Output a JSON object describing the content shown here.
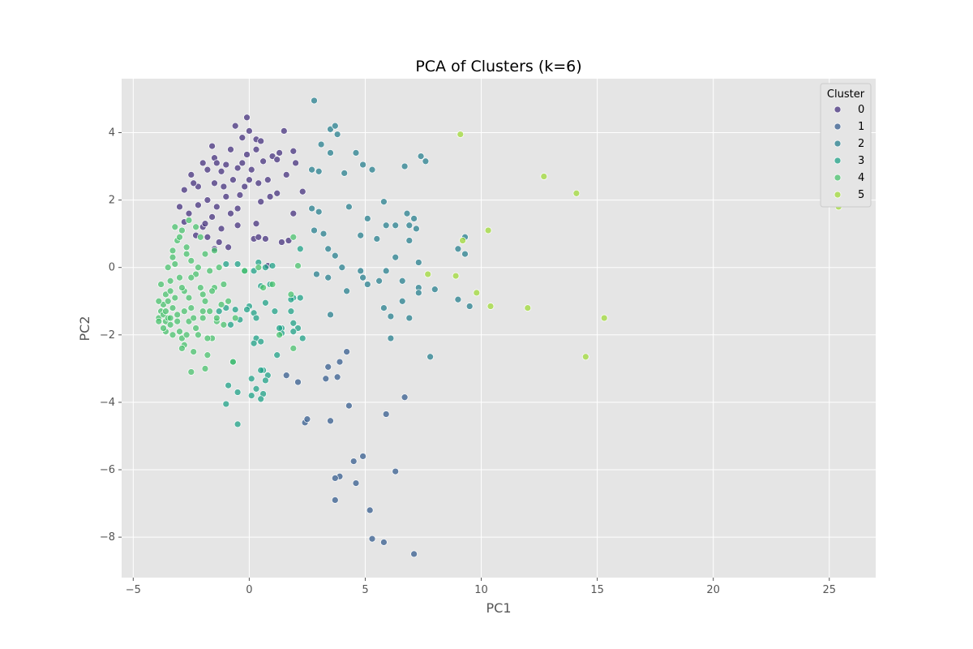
{
  "chart_data": {
    "type": "scatter",
    "title": "PCA of Clusters (k=6)",
    "xlabel": "PC1",
    "ylabel": "PC2",
    "xlim": [
      -5.5,
      27
    ],
    "ylim": [
      -9.2,
      5.6
    ],
    "xticks": [
      -5,
      0,
      5,
      10,
      15,
      20,
      25
    ],
    "yticks": [
      -8,
      -6,
      -4,
      -2,
      0,
      2,
      4
    ],
    "grid": true,
    "legend": {
      "title": "Cluster",
      "placement": "top-right"
    },
    "series": [
      {
        "name": "0",
        "color": "#46327e",
        "points": [
          [
            -0.1,
            4.45
          ],
          [
            -0.6,
            4.2
          ],
          [
            0.0,
            4.05
          ],
          [
            1.5,
            4.05
          ],
          [
            -0.3,
            3.85
          ],
          [
            0.3,
            3.8
          ],
          [
            0.5,
            3.75
          ],
          [
            -1.6,
            3.6
          ],
          [
            -0.8,
            3.5
          ],
          [
            0.3,
            3.5
          ],
          [
            -0.1,
            3.35
          ],
          [
            1.0,
            3.3
          ],
          [
            -1.5,
            3.25
          ],
          [
            0.6,
            3.15
          ],
          [
            -2.0,
            3.1
          ],
          [
            -1.0,
            3.05
          ],
          [
            1.2,
            3.2
          ],
          [
            2.0,
            3.1
          ],
          [
            -0.5,
            2.95
          ],
          [
            -1.8,
            2.9
          ],
          [
            -1.2,
            2.85
          ],
          [
            0.1,
            2.9
          ],
          [
            1.6,
            2.75
          ],
          [
            -2.5,
            2.75
          ],
          [
            -0.7,
            2.6
          ],
          [
            0.4,
            2.5
          ],
          [
            -1.5,
            2.5
          ],
          [
            -2.2,
            2.4
          ],
          [
            1.2,
            2.2
          ],
          [
            2.3,
            2.25
          ],
          [
            -2.8,
            2.3
          ],
          [
            -0.4,
            2.15
          ],
          [
            -1.0,
            2.1
          ],
          [
            0.9,
            2.1
          ],
          [
            -1.8,
            2.0
          ],
          [
            0.5,
            1.95
          ],
          [
            -2.2,
            1.85
          ],
          [
            -1.4,
            1.8
          ],
          [
            -0.5,
            1.75
          ],
          [
            -3.0,
            1.8
          ],
          [
            1.9,
            1.6
          ],
          [
            -2.6,
            1.6
          ],
          [
            -1.6,
            1.5
          ],
          [
            -0.8,
            1.6
          ],
          [
            0.3,
            1.3
          ],
          [
            -2.0,
            1.2
          ],
          [
            -1.2,
            1.15
          ],
          [
            -2.8,
            1.35
          ],
          [
            -0.5,
            1.25
          ],
          [
            -2.3,
            0.95
          ],
          [
            -1.8,
            0.9
          ],
          [
            0.2,
            0.85
          ],
          [
            0.7,
            0.85
          ],
          [
            1.4,
            0.75
          ],
          [
            1.7,
            0.8
          ],
          [
            -1.3,
            0.75
          ],
          [
            -0.9,
            0.6
          ],
          [
            -1.5,
            0.55
          ],
          [
            0.8,
            0.05
          ],
          [
            0.4,
            0.9
          ],
          [
            1.3,
            3.4
          ],
          [
            -1.1,
            2.4
          ],
          [
            0.8,
            2.6
          ],
          [
            -0.2,
            2.4
          ],
          [
            -2.4,
            2.5
          ],
          [
            -1.9,
            1.3
          ],
          [
            -0.3,
            3.1
          ],
          [
            1.9,
            3.45
          ],
          [
            0.0,
            2.6
          ],
          [
            -1.4,
            3.1
          ]
        ]
      },
      {
        "name": "1",
        "color": "#365c8d",
        "points": [
          [
            3.4,
            -2.95
          ],
          [
            2.1,
            -3.4
          ],
          [
            3.3,
            -3.3
          ],
          [
            1.6,
            -3.2
          ],
          [
            3.8,
            -3.25
          ],
          [
            3.9,
            -2.8
          ],
          [
            4.2,
            -2.5
          ],
          [
            4.3,
            -4.1
          ],
          [
            2.4,
            -4.6
          ],
          [
            3.5,
            -4.55
          ],
          [
            2.5,
            -4.5
          ],
          [
            5.9,
            -4.35
          ],
          [
            6.7,
            -3.85
          ],
          [
            4.9,
            -5.6
          ],
          [
            4.5,
            -5.75
          ],
          [
            6.3,
            -6.05
          ],
          [
            3.9,
            -6.2
          ],
          [
            3.7,
            -6.25
          ],
          [
            4.6,
            -6.4
          ],
          [
            3.7,
            -6.9
          ],
          [
            5.2,
            -7.2
          ],
          [
            5.3,
            -8.05
          ],
          [
            5.8,
            -8.15
          ],
          [
            7.1,
            -8.5
          ]
        ]
      },
      {
        "name": "2",
        "color": "#277f8e",
        "points": [
          [
            2.8,
            4.95
          ],
          [
            3.5,
            4.1
          ],
          [
            3.7,
            4.2
          ],
          [
            3.8,
            3.95
          ],
          [
            3.1,
            3.65
          ],
          [
            3.5,
            3.4
          ],
          [
            4.6,
            3.4
          ],
          [
            7.4,
            3.3
          ],
          [
            7.6,
            3.15
          ],
          [
            4.9,
            3.05
          ],
          [
            5.3,
            2.9
          ],
          [
            6.7,
            3.0
          ],
          [
            2.7,
            2.9
          ],
          [
            3.0,
            2.85
          ],
          [
            4.1,
            2.8
          ],
          [
            5.8,
            1.95
          ],
          [
            4.3,
            1.8
          ],
          [
            2.7,
            1.75
          ],
          [
            3.0,
            1.65
          ],
          [
            5.1,
            1.45
          ],
          [
            6.8,
            1.6
          ],
          [
            7.1,
            1.45
          ],
          [
            5.9,
            1.25
          ],
          [
            6.3,
            1.25
          ],
          [
            6.9,
            1.25
          ],
          [
            7.2,
            1.15
          ],
          [
            2.8,
            1.1
          ],
          [
            3.2,
            1.0
          ],
          [
            4.8,
            0.95
          ],
          [
            5.5,
            0.85
          ],
          [
            6.9,
            0.8
          ],
          [
            9.3,
            0.9
          ],
          [
            9.0,
            0.55
          ],
          [
            9.3,
            0.4
          ],
          [
            3.4,
            0.55
          ],
          [
            3.7,
            0.35
          ],
          [
            6.3,
            0.3
          ],
          [
            7.3,
            0.15
          ],
          [
            4.0,
            0.0
          ],
          [
            4.8,
            -0.1
          ],
          [
            5.9,
            -0.1
          ],
          [
            2.9,
            -0.2
          ],
          [
            3.4,
            -0.3
          ],
          [
            4.9,
            -0.3
          ],
          [
            5.1,
            -0.5
          ],
          [
            5.6,
            -0.4
          ],
          [
            6.6,
            -0.4
          ],
          [
            7.3,
            -0.6
          ],
          [
            7.3,
            -0.75
          ],
          [
            8.0,
            -0.65
          ],
          [
            6.6,
            -1.0
          ],
          [
            9.0,
            -0.95
          ],
          [
            9.5,
            -1.15
          ],
          [
            5.8,
            -1.2
          ],
          [
            6.1,
            -1.45
          ],
          [
            3.5,
            -1.4
          ],
          [
            6.9,
            -1.5
          ],
          [
            6.1,
            -2.1
          ],
          [
            7.8,
            -2.65
          ],
          [
            4.2,
            -0.7
          ]
        ]
      },
      {
        "name": "3",
        "color": "#1fa187",
        "points": [
          [
            -1.0,
            0.1
          ],
          [
            -0.5,
            0.1
          ],
          [
            0.4,
            0.15
          ],
          [
            0.7,
            0.0
          ],
          [
            1.0,
            0.05
          ],
          [
            0.2,
            -0.1
          ],
          [
            -0.2,
            -0.1
          ],
          [
            0.5,
            -0.55
          ],
          [
            0.9,
            -0.5
          ],
          [
            1.9,
            -0.9
          ],
          [
            2.2,
            -0.9
          ],
          [
            0.7,
            -1.05
          ],
          [
            0.0,
            -1.15
          ],
          [
            -0.1,
            -1.25
          ],
          [
            -0.6,
            -1.25
          ],
          [
            -1.0,
            -1.2
          ],
          [
            -1.3,
            -1.3
          ],
          [
            0.2,
            -1.35
          ],
          [
            1.1,
            -1.3
          ],
          [
            1.8,
            -1.3
          ],
          [
            1.9,
            -1.65
          ],
          [
            1.4,
            -1.8
          ],
          [
            2.1,
            -1.8
          ],
          [
            1.9,
            -1.9
          ],
          [
            1.4,
            -1.95
          ],
          [
            2.3,
            -2.1
          ],
          [
            0.3,
            -2.1
          ],
          [
            0.5,
            -2.2
          ],
          [
            0.2,
            -2.25
          ],
          [
            1.2,
            -2.6
          ],
          [
            -0.7,
            -2.8
          ],
          [
            0.6,
            -3.05
          ],
          [
            0.8,
            -3.2
          ],
          [
            0.7,
            -3.35
          ],
          [
            0.1,
            -3.3
          ],
          [
            -0.9,
            -3.5
          ],
          [
            -0.5,
            -3.7
          ],
          [
            0.3,
            -3.6
          ],
          [
            0.6,
            -3.75
          ],
          [
            0.5,
            -3.9
          ],
          [
            0.1,
            -3.8
          ],
          [
            -1.0,
            -4.05
          ],
          [
            -0.5,
            -4.65
          ],
          [
            -0.4,
            -1.55
          ],
          [
            0.3,
            -1.5
          ],
          [
            -0.8,
            -1.7
          ],
          [
            1.3,
            -1.8
          ],
          [
            1.8,
            -0.95
          ],
          [
            0.5,
            -3.05
          ],
          [
            2.2,
            0.55
          ]
        ]
      },
      {
        "name": "4",
        "color": "#4ac16d",
        "points": [
          [
            -3.9,
            -1.5
          ],
          [
            -3.8,
            -1.3
          ],
          [
            -3.7,
            -1.4
          ],
          [
            -3.6,
            -1.6
          ],
          [
            -3.7,
            -1.1
          ],
          [
            -3.5,
            -1.5
          ],
          [
            -3.4,
            -1.7
          ],
          [
            -3.3,
            -1.2
          ],
          [
            -3.6,
            -0.8
          ],
          [
            -3.4,
            -0.4
          ],
          [
            -3.2,
            -0.9
          ],
          [
            -3.1,
            -1.4
          ],
          [
            -3.0,
            -1.9
          ],
          [
            -2.9,
            -2.1
          ],
          [
            -2.8,
            -2.3
          ],
          [
            -2.7,
            -2.0
          ],
          [
            -2.6,
            -1.6
          ],
          [
            -2.5,
            -1.2
          ],
          [
            -2.8,
            -0.7
          ],
          [
            -3.0,
            -0.3
          ],
          [
            -3.2,
            0.1
          ],
          [
            -3.3,
            0.5
          ],
          [
            -3.1,
            0.8
          ],
          [
            -2.9,
            1.1
          ],
          [
            -2.7,
            0.6
          ],
          [
            -2.5,
            0.2
          ],
          [
            -2.3,
            -0.2
          ],
          [
            -2.1,
            -0.6
          ],
          [
            -1.9,
            -1.0
          ],
          [
            -2.0,
            -1.5
          ],
          [
            -2.2,
            -2.0
          ],
          [
            -2.4,
            -2.5
          ],
          [
            -2.5,
            -3.1
          ],
          [
            -1.9,
            -3.0
          ],
          [
            -1.8,
            -2.6
          ],
          [
            -1.6,
            -2.1
          ],
          [
            -1.4,
            -1.6
          ],
          [
            -1.2,
            -1.1
          ],
          [
            -1.5,
            -0.6
          ],
          [
            -1.7,
            -0.1
          ],
          [
            -1.9,
            0.4
          ],
          [
            -2.1,
            0.9
          ],
          [
            -2.3,
            1.2
          ],
          [
            -2.6,
            1.4
          ],
          [
            -1.5,
            0.5
          ],
          [
            -1.3,
            0.0
          ],
          [
            -1.1,
            -0.5
          ],
          [
            -0.9,
            -1.0
          ],
          [
            -3.8,
            -0.5
          ],
          [
            -3.5,
            0.0
          ],
          [
            -3.3,
            -2.0
          ],
          [
            -3.6,
            -1.9
          ],
          [
            -2.9,
            -0.6
          ],
          [
            -2.6,
            -0.9
          ],
          [
            -2.4,
            -1.5
          ],
          [
            -2.7,
            0.4
          ],
          [
            -3.0,
            0.9
          ],
          [
            -3.2,
            1.2
          ],
          [
            -1.7,
            -1.3
          ],
          [
            -1.4,
            -1.5
          ],
          [
            -0.2,
            -0.1
          ],
          [
            0.4,
            0.0
          ],
          [
            1.0,
            -0.5
          ],
          [
            -3.4,
            -0.7
          ],
          [
            -3.9,
            -1.0
          ],
          [
            -3.5,
            -1.0
          ],
          [
            -2.8,
            -1.3
          ],
          [
            -3.1,
            -1.6
          ],
          [
            -2.2,
            0.0
          ],
          [
            -2.0,
            -0.8
          ],
          [
            -1.8,
            -2.1
          ],
          [
            -2.5,
            -0.3
          ],
          [
            -3.7,
            -1.8
          ],
          [
            -3.3,
            0.3
          ],
          [
            -2.9,
            -2.4
          ],
          [
            -1.6,
            -0.7
          ],
          [
            -1.1,
            -1.7
          ],
          [
            -0.6,
            -1.5
          ],
          [
            0.6,
            -0.6
          ],
          [
            1.3,
            -2.0
          ],
          [
            1.8,
            -0.8
          ],
          [
            1.9,
            0.9
          ],
          [
            2.1,
            0.05
          ],
          [
            -3.9,
            -1.6
          ],
          [
            -3.6,
            -1.3
          ],
          [
            -3.4,
            -1.5
          ],
          [
            -2.3,
            -1.8
          ],
          [
            -2.0,
            -1.3
          ],
          [
            -0.7,
            -2.8
          ],
          [
            1.9,
            -2.4
          ]
        ]
      },
      {
        "name": "5",
        "color": "#a0da39",
        "points": [
          [
            9.1,
            3.95
          ],
          [
            12.7,
            2.7
          ],
          [
            14.1,
            2.2
          ],
          [
            10.3,
            1.1
          ],
          [
            9.2,
            0.8
          ],
          [
            25.4,
            1.8
          ],
          [
            7.7,
            -0.2
          ],
          [
            8.9,
            -0.25
          ],
          [
            9.8,
            -0.75
          ],
          [
            10.4,
            -1.15
          ],
          [
            12.0,
            -1.2
          ],
          [
            15.3,
            -1.5
          ],
          [
            14.5,
            -2.65
          ]
        ]
      }
    ]
  }
}
